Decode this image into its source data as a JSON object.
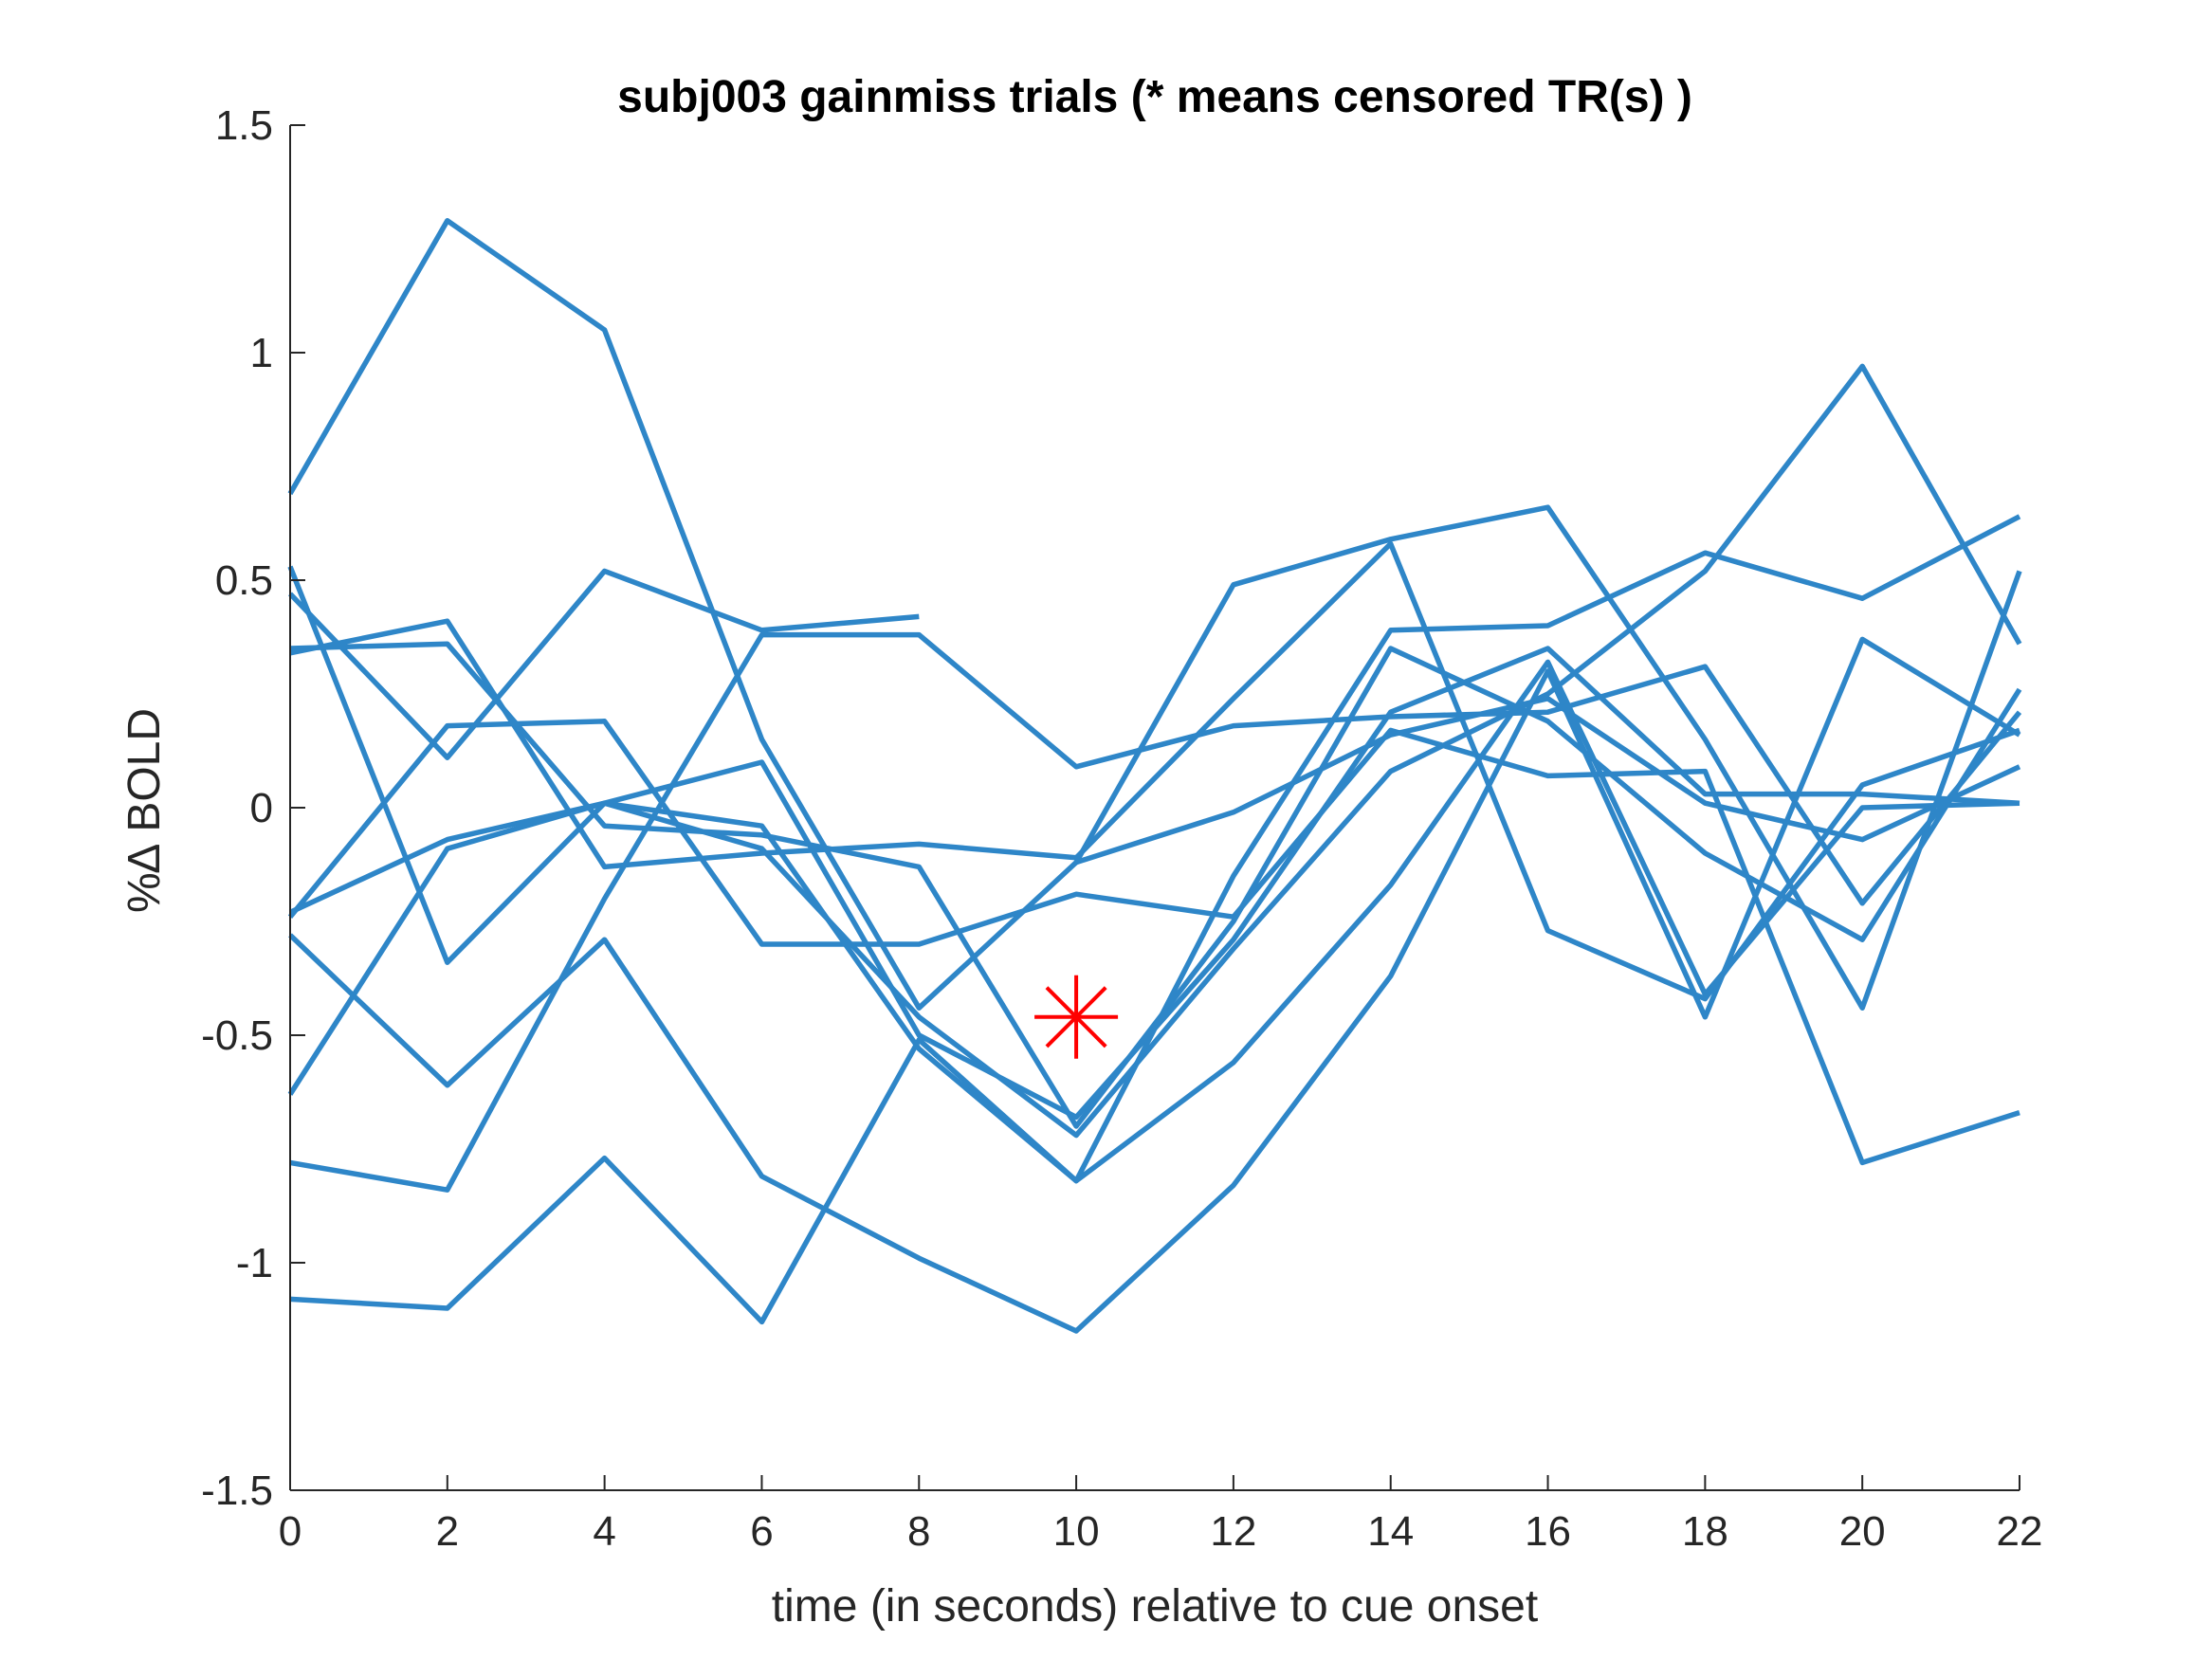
{
  "chart_data": {
    "type": "line",
    "title": "subj003 gainmiss trials (* means censored TR(s) )",
    "xlabel": "time (in seconds) relative to cue onset",
    "ylabel": "%∆ BOLD",
    "xlim": [
      0,
      22
    ],
    "ylim": [
      -1.5,
      1.5
    ],
    "xticks": [
      0,
      2,
      4,
      6,
      8,
      10,
      12,
      14,
      16,
      18,
      20,
      22
    ],
    "yticks": [
      -1.5,
      -1,
      -0.5,
      0,
      0.5,
      1,
      1.5
    ],
    "ytick_labels": [
      "-1.5",
      "-1",
      "-0.5",
      "0",
      "0.5",
      "1",
      "1.5"
    ],
    "grid": false,
    "series_color": "#2e86c8",
    "x": [
      0,
      2,
      4,
      6,
      8,
      10,
      12,
      14,
      16,
      18,
      20,
      22
    ],
    "series": [
      {
        "values": [
          0.69,
          1.29,
          1.05,
          0.15,
          -0.44,
          -0.12,
          0.49,
          0.59,
          0.66,
          0.15,
          -0.44,
          0.52
        ]
      },
      {
        "values": [
          0.53,
          -0.34,
          0.01,
          -0.09,
          -0.46,
          -0.72,
          -0.31,
          0.08,
          0.25,
          0.52,
          0.97,
          0.36
        ]
      },
      {
        "values": [
          0.47,
          0.11,
          0.52,
          0.39,
          0.42,
          null,
          null,
          null,
          null,
          null,
          null,
          null
        ]
      },
      {
        "values": [
          0.34,
          0.41,
          -0.13,
          -0.1,
          -0.08,
          -0.11,
          0.24,
          0.58,
          -0.27,
          -0.42,
          0.05,
          0.17
        ]
      },
      {
        "values": [
          0.35,
          0.36,
          -0.04,
          -0.06,
          -0.13,
          -0.7,
          -0.25,
          0.35,
          0.19,
          -0.1,
          -0.29,
          0.26
        ]
      },
      {
        "values": [
          -0.24,
          0.18,
          0.19,
          -0.3,
          -0.3,
          -0.19,
          -0.24,
          0.17,
          0.07,
          0.08,
          -0.78,
          -0.67
        ]
      },
      {
        "values": [
          -0.23,
          -0.07,
          0.01,
          0.1,
          -0.5,
          -0.68,
          -0.29,
          0.21,
          0.35,
          0.03,
          0.03,
          0.01
        ]
      },
      {
        "values": [
          -0.28,
          -0.61,
          -0.29,
          -0.81,
          -0.99,
          -1.15,
          -0.83,
          -0.37,
          0.3,
          -0.46,
          0.37,
          0.16
        ]
      },
      {
        "values": [
          -0.63,
          -0.09,
          0.01,
          -0.04,
          -0.53,
          -0.82,
          -0.15,
          0.39,
          0.4,
          0.56,
          0.46,
          0.64
        ]
      },
      {
        "values": [
          -0.78,
          -0.84,
          -0.2,
          0.38,
          0.38,
          0.09,
          0.18,
          0.2,
          0.21,
          0.31,
          -0.21,
          0.21
        ]
      },
      {
        "values": [
          -1.08,
          -1.1,
          -0.77,
          -1.13,
          -0.51,
          -0.82,
          -0.56,
          -0.17,
          0.32,
          -0.41,
          0.0,
          0.01
        ]
      },
      {
        "values": [
          null,
          null,
          null,
          null,
          null,
          -0.12,
          -0.01,
          0.16,
          0.24,
          0.01,
          -0.07,
          0.09
        ]
      }
    ],
    "censored_points": [
      {
        "x": 10,
        "y": -0.46,
        "marker": "*",
        "color": "#ff0000"
      }
    ]
  }
}
